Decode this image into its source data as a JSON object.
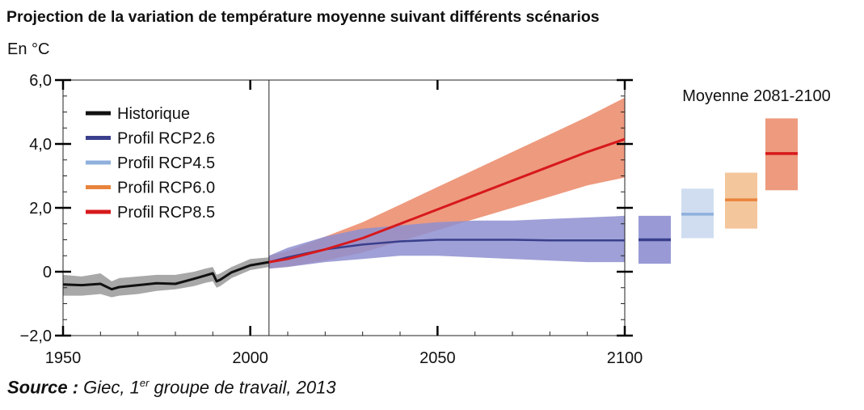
{
  "chart_data": {
    "type": "area",
    "title": "Projection de la variation de température moyenne suivant différents scénarios",
    "ylabel": "En °C",
    "xlim": [
      1950,
      2100
    ],
    "ylim": [
      -2.0,
      6.0
    ],
    "x_ticks": [
      1950,
      2000,
      2050,
      2100
    ],
    "x_tick_labels": [
      "1950",
      "2000",
      "2050",
      "2100"
    ],
    "y_ticks": [
      6.0,
      4.0,
      2.0,
      0,
      -2.0
    ],
    "y_tick_labels": [
      "6,0",
      "4,0",
      "2,0",
      "0",
      "−2,0"
    ],
    "legend_position": "top-left",
    "series": [
      {
        "name": "Historique",
        "color": "#111111",
        "band_color": "#a8a8a8",
        "x": [
          1950,
          1955,
          1960,
          1963,
          1965,
          1970,
          1975,
          1980,
          1985,
          1988,
          1990,
          1991,
          1992,
          1995,
          2000,
          2005
        ],
        "mean": [
          -0.4,
          -0.42,
          -0.38,
          -0.55,
          -0.48,
          -0.42,
          -0.36,
          -0.38,
          -0.22,
          -0.12,
          -0.05,
          -0.3,
          -0.25,
          -0.02,
          0.2,
          0.3
        ],
        "lower": [
          -0.75,
          -0.75,
          -0.7,
          -0.8,
          -0.75,
          -0.7,
          -0.6,
          -0.55,
          -0.45,
          -0.35,
          -0.3,
          -0.5,
          -0.45,
          -0.2,
          0.05,
          0.15
        ],
        "upper": [
          -0.1,
          -0.15,
          -0.05,
          -0.3,
          -0.2,
          -0.15,
          -0.1,
          -0.1,
          0.0,
          0.1,
          0.15,
          -0.1,
          -0.05,
          0.15,
          0.4,
          0.45
        ]
      },
      {
        "name": "Profil RCP2.6",
        "color": "#3a3f8c",
        "band_color": "#8e8fd0",
        "x": [
          2005,
          2010,
          2020,
          2030,
          2040,
          2050,
          2060,
          2070,
          2080,
          2090,
          2100
        ],
        "mean": [
          0.3,
          0.45,
          0.7,
          0.85,
          0.95,
          1.0,
          1.0,
          1.0,
          0.98,
          0.98,
          0.98
        ],
        "lower": [
          0.1,
          0.15,
          0.3,
          0.4,
          0.5,
          0.5,
          0.45,
          0.4,
          0.35,
          0.3,
          0.3
        ],
        "upper": [
          0.5,
          0.75,
          1.1,
          1.35,
          1.45,
          1.55,
          1.6,
          1.6,
          1.65,
          1.7,
          1.75
        ]
      },
      {
        "name": "Profil RCP4.5",
        "color": "#8fb0dc",
        "band_color": "#d0ddf1"
      },
      {
        "name": "Profil RCP6.0",
        "color": "#e9843c",
        "band_color": "#f4c69b"
      },
      {
        "name": "Profil RCP8.5",
        "color": "#d7191c",
        "band_color": "#ee9a7e",
        "x": [
          2005,
          2010,
          2020,
          2030,
          2040,
          2050,
          2060,
          2070,
          2080,
          2090,
          2100
        ],
        "mean": [
          0.3,
          0.4,
          0.7,
          1.05,
          1.5,
          1.95,
          2.4,
          2.85,
          3.3,
          3.75,
          4.15
        ],
        "lower": [
          0.1,
          0.15,
          0.35,
          0.6,
          0.95,
          1.3,
          1.65,
          2.0,
          2.35,
          2.7,
          2.95
        ],
        "upper": [
          0.5,
          0.65,
          1.1,
          1.55,
          2.1,
          2.65,
          3.2,
          3.75,
          4.3,
          4.85,
          5.45
        ]
      }
    ],
    "period_marker": 2005,
    "side_panel": {
      "title": "Moyenne 2081-2100",
      "boxes": [
        {
          "name": "Profil RCP2.6",
          "mean": 1.0,
          "low": 0.25,
          "high": 1.75
        },
        {
          "name": "Profil RCP4.5",
          "mean": 1.8,
          "low": 1.05,
          "high": 2.6
        },
        {
          "name": "Profil RCP6.0",
          "mean": 2.25,
          "low": 1.35,
          "high": 3.1
        },
        {
          "name": "Profil RCP8.5",
          "mean": 3.7,
          "low": 2.55,
          "high": 4.8
        }
      ]
    }
  },
  "source": {
    "label": "Source :",
    "text_prefix": "Giec, 1",
    "superscript": "er",
    "text_suffix": " groupe de travail, 2013"
  }
}
